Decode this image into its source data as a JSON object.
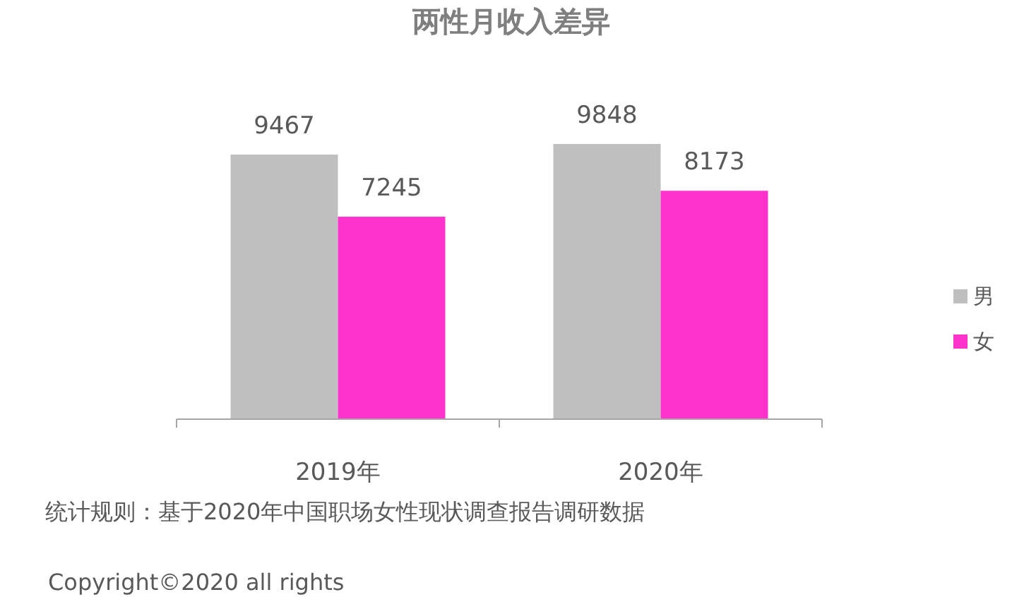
{
  "chart_data": {
    "type": "bar",
    "title": "两性月收入差异",
    "categories": [
      "2019年",
      "2020年"
    ],
    "series": [
      {
        "name": "男",
        "color": "#bfbfbf",
        "values": [
          9467,
          9848
        ]
      },
      {
        "name": "女",
        "color": "#ff33cc",
        "values": [
          7245,
          8173
        ]
      }
    ],
    "data_labels": true,
    "legend": "right",
    "annotations": [
      "统计规则：基于2020年中国职场女性现状调查报告调研数据",
      "Copyright©2020 all rights"
    ]
  }
}
